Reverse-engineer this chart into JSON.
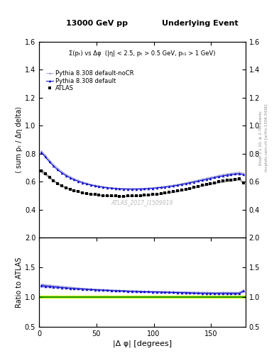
{
  "title_left": "13000 GeV pp",
  "title_right": "Underlying Event",
  "annotation": "Σ(pₜ) vs Δφ  (|η| < 2.5, pₜ > 0.5 GeV, pₜ₁ > 1 GeV)",
  "watermark": "ATLAS_2017_I1509919",
  "rivet_text": "Rivet 3.1.10, ≥ 2.7M events",
  "mcplots_text": "mcplots.cern.ch [arXiv:1306.3436]",
  "ylabel_main": "⟨ sum pₜ / Δη delta⟩",
  "ylabel_ratio": "Ratio to ATLAS",
  "xlabel": "|Δ φ| [degrees]",
  "xlim": [
    0,
    180
  ],
  "ylim_main": [
    0.2,
    1.6
  ],
  "ylim_ratio": [
    0.5,
    2.0
  ],
  "yticks_main": [
    0.4,
    0.6,
    0.8,
    1.0,
    1.2,
    1.4,
    1.6
  ],
  "yticks_ratio": [
    0.5,
    1.0,
    1.5,
    2.0
  ],
  "xticks": [
    0,
    50,
    100,
    150
  ],
  "atlas_color": "#000000",
  "pythia_default_color": "#0000cc",
  "pythia_nocr_color": "#aaaadd",
  "x_data": [
    1.8,
    5.4,
    9.0,
    12.6,
    16.2,
    19.8,
    23.4,
    27.0,
    30.6,
    34.2,
    37.8,
    41.4,
    45.0,
    48.6,
    52.2,
    55.8,
    59.4,
    63.0,
    66.6,
    70.2,
    73.8,
    77.4,
    81.0,
    84.6,
    88.2,
    91.8,
    95.4,
    99.0,
    102.6,
    106.2,
    109.8,
    113.4,
    117.0,
    120.6,
    124.2,
    127.8,
    131.4,
    135.0,
    138.6,
    142.2,
    145.8,
    149.4,
    153.0,
    156.6,
    160.2,
    163.8,
    167.4,
    171.0,
    174.6,
    178.2
  ],
  "atlas_y": [
    0.678,
    0.658,
    0.63,
    0.608,
    0.588,
    0.572,
    0.558,
    0.547,
    0.537,
    0.53,
    0.522,
    0.517,
    0.512,
    0.508,
    0.505,
    0.502,
    0.5,
    0.499,
    0.498,
    0.497,
    0.497,
    0.498,
    0.499,
    0.5,
    0.502,
    0.504,
    0.506,
    0.509,
    0.512,
    0.516,
    0.52,
    0.524,
    0.529,
    0.534,
    0.54,
    0.546,
    0.553,
    0.56,
    0.567,
    0.574,
    0.58,
    0.587,
    0.593,
    0.599,
    0.604,
    0.609,
    0.613,
    0.617,
    0.62,
    0.59
  ],
  "atlas_yerr": [
    0.015,
    0.012,
    0.01,
    0.009,
    0.008,
    0.008,
    0.007,
    0.007,
    0.007,
    0.006,
    0.006,
    0.006,
    0.006,
    0.006,
    0.006,
    0.006,
    0.006,
    0.006,
    0.006,
    0.006,
    0.006,
    0.006,
    0.006,
    0.006,
    0.006,
    0.006,
    0.006,
    0.006,
    0.006,
    0.006,
    0.006,
    0.006,
    0.007,
    0.007,
    0.007,
    0.007,
    0.007,
    0.007,
    0.008,
    0.008,
    0.008,
    0.008,
    0.008,
    0.009,
    0.009,
    0.009,
    0.01,
    0.01,
    0.01,
    0.01
  ],
  "pythia_default_y": [
    0.81,
    0.778,
    0.742,
    0.712,
    0.685,
    0.663,
    0.644,
    0.628,
    0.614,
    0.603,
    0.593,
    0.584,
    0.577,
    0.571,
    0.565,
    0.561,
    0.557,
    0.554,
    0.551,
    0.549,
    0.548,
    0.547,
    0.547,
    0.547,
    0.548,
    0.549,
    0.551,
    0.553,
    0.556,
    0.559,
    0.562,
    0.566,
    0.57,
    0.575,
    0.58,
    0.586,
    0.592,
    0.598,
    0.604,
    0.611,
    0.617,
    0.624,
    0.63,
    0.636,
    0.642,
    0.647,
    0.651,
    0.655,
    0.658,
    0.65
  ],
  "pythia_default_yerr": [
    0.008,
    0.007,
    0.006,
    0.005,
    0.005,
    0.005,
    0.004,
    0.004,
    0.004,
    0.004,
    0.004,
    0.004,
    0.003,
    0.003,
    0.003,
    0.003,
    0.003,
    0.003,
    0.003,
    0.003,
    0.003,
    0.003,
    0.003,
    0.003,
    0.003,
    0.003,
    0.003,
    0.003,
    0.003,
    0.003,
    0.003,
    0.003,
    0.003,
    0.003,
    0.003,
    0.003,
    0.004,
    0.004,
    0.004,
    0.004,
    0.004,
    0.004,
    0.004,
    0.005,
    0.005,
    0.005,
    0.005,
    0.005,
    0.005,
    0.005
  ],
  "pythia_nocr_y": [
    0.82,
    0.79,
    0.754,
    0.724,
    0.697,
    0.674,
    0.654,
    0.637,
    0.622,
    0.61,
    0.599,
    0.59,
    0.582,
    0.575,
    0.57,
    0.565,
    0.561,
    0.558,
    0.555,
    0.553,
    0.552,
    0.551,
    0.551,
    0.551,
    0.552,
    0.553,
    0.555,
    0.557,
    0.56,
    0.563,
    0.567,
    0.571,
    0.576,
    0.581,
    0.587,
    0.593,
    0.599,
    0.606,
    0.612,
    0.619,
    0.626,
    0.632,
    0.638,
    0.645,
    0.651,
    0.656,
    0.66,
    0.664,
    0.668,
    0.66
  ],
  "pythia_nocr_yerr": [
    0.008,
    0.007,
    0.006,
    0.005,
    0.005,
    0.005,
    0.004,
    0.004,
    0.004,
    0.004,
    0.004,
    0.004,
    0.003,
    0.003,
    0.003,
    0.003,
    0.003,
    0.003,
    0.003,
    0.003,
    0.003,
    0.003,
    0.003,
    0.003,
    0.003,
    0.003,
    0.003,
    0.003,
    0.003,
    0.003,
    0.003,
    0.003,
    0.003,
    0.003,
    0.003,
    0.003,
    0.004,
    0.004,
    0.004,
    0.004,
    0.004,
    0.004,
    0.004,
    0.005,
    0.005,
    0.005,
    0.005,
    0.005,
    0.005,
    0.005
  ]
}
